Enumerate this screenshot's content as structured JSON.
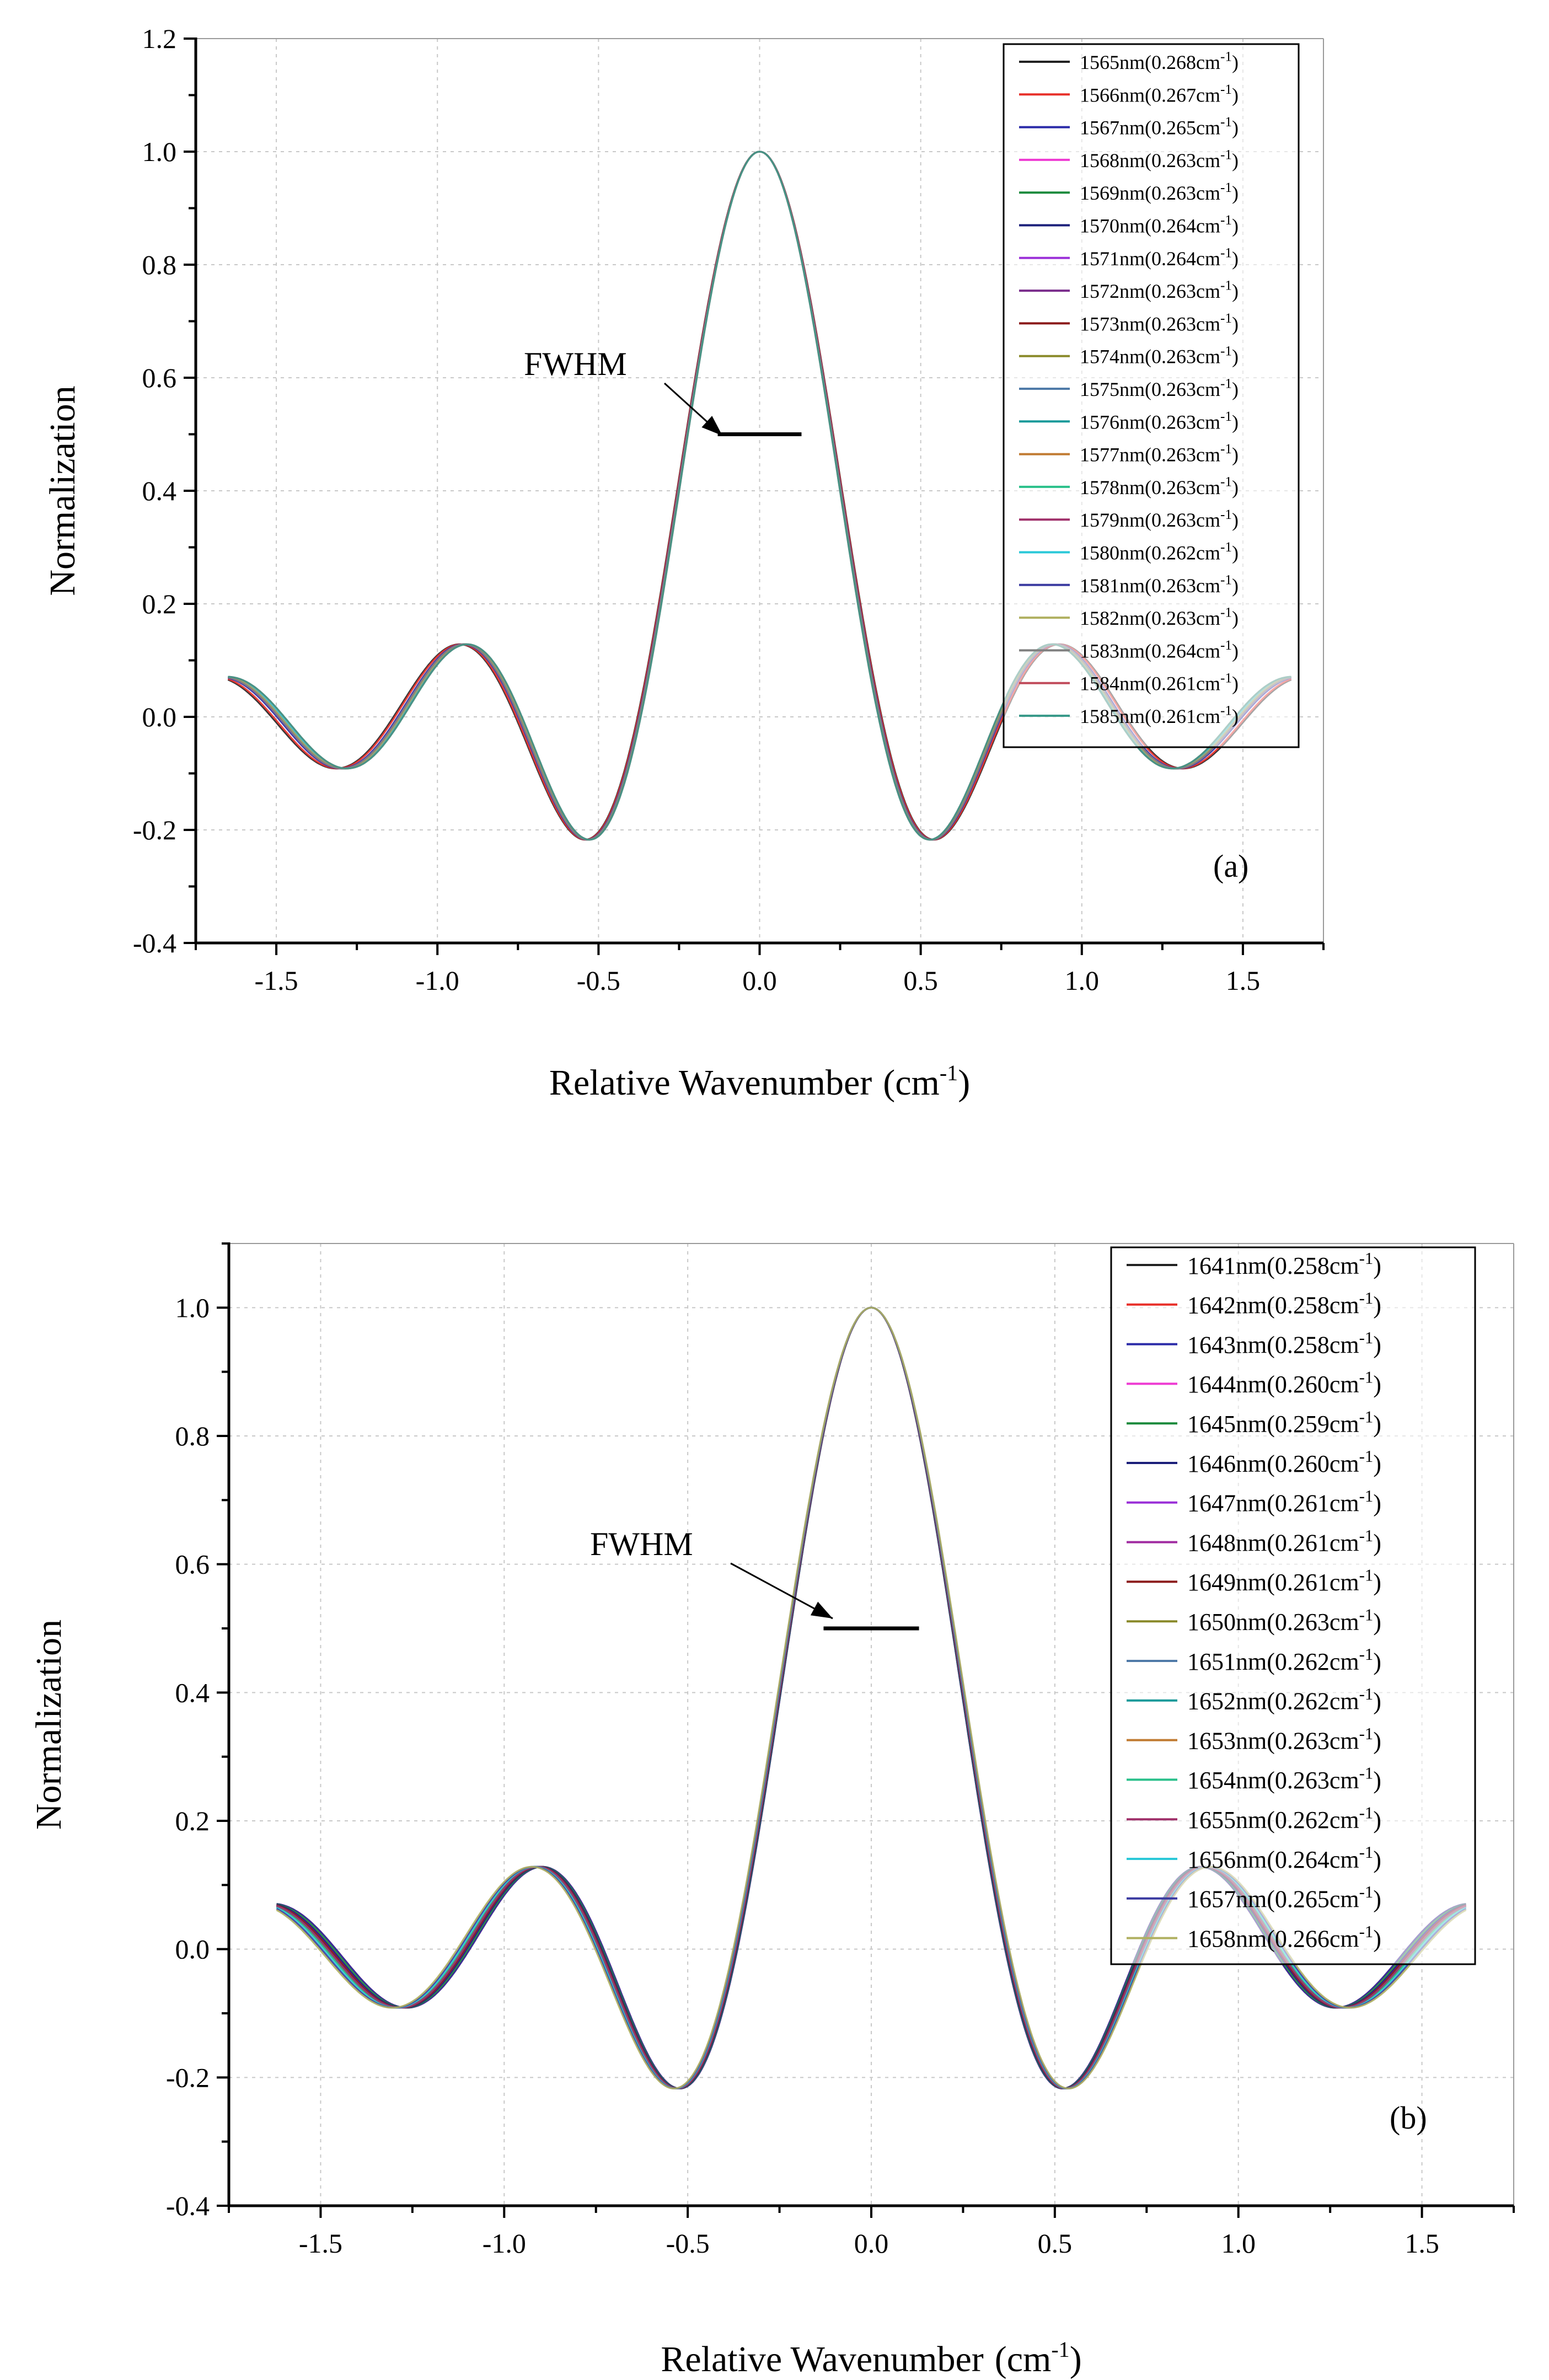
{
  "chart_data": [
    {
      "type": "line",
      "panel_label": "(a)",
      "xlabel": "Relative Wavenumber",
      "xlabel_unit": "(cm",
      "xlabel_unit_sup": "-1",
      "xlabel_unit_close": ")",
      "ylabel": "Normalization",
      "xlim": [
        -1.75,
        1.75
      ],
      "ylim": [
        -0.4,
        1.2
      ],
      "xticks": [
        -1.5,
        -1.0,
        -0.5,
        0.0,
        0.5,
        1.0,
        1.5
      ],
      "xtick_labels": [
        "-1.5",
        "-1.0",
        "-0.5",
        "0.0",
        "0.5",
        "1.0",
        "1.5"
      ],
      "yticks": [
        -0.4,
        -0.2,
        0.0,
        0.2,
        0.4,
        0.6,
        0.8,
        1.0,
        1.2
      ],
      "ytick_labels": [
        "-0.4",
        "-0.2",
        "0.0",
        "0.2",
        "0.4",
        "0.6",
        "0.8",
        "1.0",
        "1.2"
      ],
      "grid": true,
      "legend_position": "top-right",
      "x_range": [
        -1.65,
        1.65
      ],
      "annotation": {
        "text": "FWHM",
        "y": 0.5,
        "x_left": -0.13,
        "x_right": 0.13
      },
      "series": [
        {
          "name": "1565nm(0.268cm",
          "width": 0.268,
          "color": "#222222"
        },
        {
          "name": "1566nm(0.267cm",
          "width": 0.267,
          "color": "#e8302a"
        },
        {
          "name": "1567nm(0.265cm",
          "width": 0.265,
          "color": "#2a2aa8"
        },
        {
          "name": "1568nm(0.263cm",
          "width": 0.263,
          "color": "#ee3ad2"
        },
        {
          "name": "1569nm(0.263cm",
          "width": 0.263,
          "color": "#1b8a3c"
        },
        {
          "name": "1570nm(0.264cm",
          "width": 0.264,
          "color": "#1b1f7a"
        },
        {
          "name": "1571nm(0.264cm",
          "width": 0.264,
          "color": "#9b30d8"
        },
        {
          "name": "1572nm(0.263cm",
          "width": 0.263,
          "color": "#7a2d8c"
        },
        {
          "name": "1573nm(0.263cm",
          "width": 0.263,
          "color": "#8b1a1a"
        },
        {
          "name": "1574nm(0.263cm",
          "width": 0.263,
          "color": "#8a8a2a"
        },
        {
          "name": "1575nm(0.263cm",
          "width": 0.263,
          "color": "#4f7aa8"
        },
        {
          "name": "1576nm(0.263cm",
          "width": 0.263,
          "color": "#1a9a9a"
        },
        {
          "name": "1577nm(0.263cm",
          "width": 0.263,
          "color": "#c07a30"
        },
        {
          "name": "1578nm(0.263cm",
          "width": 0.263,
          "color": "#2ac08a"
        },
        {
          "name": "1579nm(0.263cm",
          "width": 0.263,
          "color": "#a0306a"
        },
        {
          "name": "1580nm(0.262cm",
          "width": 0.262,
          "color": "#2ac8d8"
        },
        {
          "name": "1581nm(0.263cm",
          "width": 0.263,
          "color": "#3a3aa0"
        },
        {
          "name": "1582nm(0.263cm",
          "width": 0.263,
          "color": "#b0b060"
        },
        {
          "name": "1583nm(0.264cm",
          "width": 0.264,
          "color": "#808080"
        },
        {
          "name": "1584nm(0.261cm",
          "width": 0.261,
          "color": "#c04a5a"
        },
        {
          "name": "1585nm(0.261cm",
          "width": 0.261,
          "color": "#3a9a8a"
        }
      ]
    },
    {
      "type": "line",
      "panel_label": "(b)",
      "xlabel": "Relative Wavenumber",
      "xlabel_unit": "(cm",
      "xlabel_unit_sup": "-1",
      "xlabel_unit_close": ")",
      "ylabel": "Normalization",
      "xlim": [
        -1.75,
        1.75
      ],
      "ylim": [
        -0.4,
        1.1
      ],
      "xticks": [
        -1.5,
        -1.0,
        -0.5,
        0.0,
        0.5,
        1.0,
        1.5
      ],
      "xtick_labels": [
        "-1.5",
        "-1.0",
        "-0.5",
        "0.0",
        "0.5",
        "1.0",
        "1.5"
      ],
      "yticks": [
        -0.4,
        -0.2,
        0.0,
        0.2,
        0.4,
        0.6,
        0.8,
        1.0
      ],
      "ytick_labels": [
        "-0.4",
        "-0.2",
        "0.0",
        "0.2",
        "0.4",
        "0.6",
        "0.8",
        "1.0"
      ],
      "grid": true,
      "legend_position": "top-right",
      "x_range": [
        -1.62,
        1.62
      ],
      "annotation": {
        "text": "FWHM",
        "y": 0.5,
        "x_left": -0.13,
        "x_right": 0.13
      },
      "series": [
        {
          "name": "1641nm(0.258cm",
          "width": 0.258,
          "color": "#222222"
        },
        {
          "name": "1642nm(0.258cm",
          "width": 0.258,
          "color": "#e8302a"
        },
        {
          "name": "1643nm(0.258cm",
          "width": 0.258,
          "color": "#2a2aa8"
        },
        {
          "name": "1644nm(0.260cm",
          "width": 0.26,
          "color": "#ee3ad2"
        },
        {
          "name": "1645nm(0.259cm",
          "width": 0.259,
          "color": "#1b8a3c"
        },
        {
          "name": "1646nm(0.260cm",
          "width": 0.26,
          "color": "#1b1f7a"
        },
        {
          "name": "1647nm(0.261cm",
          "width": 0.261,
          "color": "#9b30d8"
        },
        {
          "name": "1648nm(0.261cm",
          "width": 0.261,
          "color": "#a02aa0"
        },
        {
          "name": "1649nm(0.261cm",
          "width": 0.261,
          "color": "#8b1a1a"
        },
        {
          "name": "1650nm(0.263cm",
          "width": 0.263,
          "color": "#8a8a2a"
        },
        {
          "name": "1651nm(0.262cm",
          "width": 0.262,
          "color": "#4f7aa8"
        },
        {
          "name": "1652nm(0.262cm",
          "width": 0.262,
          "color": "#1a9a9a"
        },
        {
          "name": "1653nm(0.263cm",
          "width": 0.263,
          "color": "#c07a30"
        },
        {
          "name": "1654nm(0.263cm",
          "width": 0.263,
          "color": "#2ac08a"
        },
        {
          "name": "1655nm(0.262cm",
          "width": 0.262,
          "color": "#a0306a"
        },
        {
          "name": "1656nm(0.264cm",
          "width": 0.264,
          "color": "#2ac8d8"
        },
        {
          "name": "1657nm(0.265cm",
          "width": 0.265,
          "color": "#3a3aa0"
        },
        {
          "name": "1658nm(0.266cm",
          "width": 0.266,
          "color": "#b0b060"
        }
      ]
    }
  ],
  "legend_unit_sup": "-1",
  "legend_unit_close": ")"
}
